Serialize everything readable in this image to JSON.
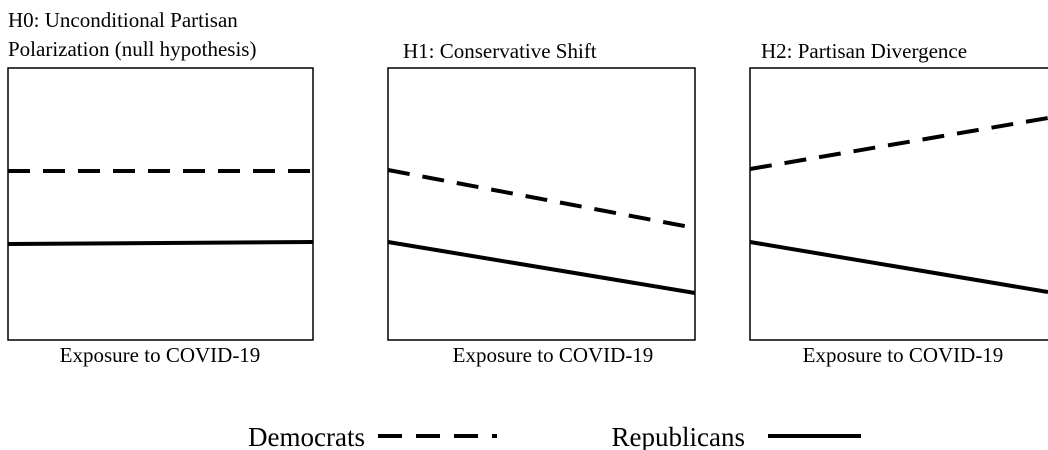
{
  "panels": [
    {
      "title_lines": [
        "H0: Unconditional Partisan",
        "Polarization (null hypothesis)"
      ],
      "x_label": "Exposure to COVID-19"
    },
    {
      "title_lines": [
        "H1: Conservative Shift"
      ],
      "x_label": "Exposure to COVID-19"
    },
    {
      "title_lines": [
        "H2: Partisan Divergence"
      ],
      "x_label": "Exposure to COVID-19"
    }
  ],
  "legend": {
    "dashed": "Democrats",
    "solid": "Republicans"
  }
}
